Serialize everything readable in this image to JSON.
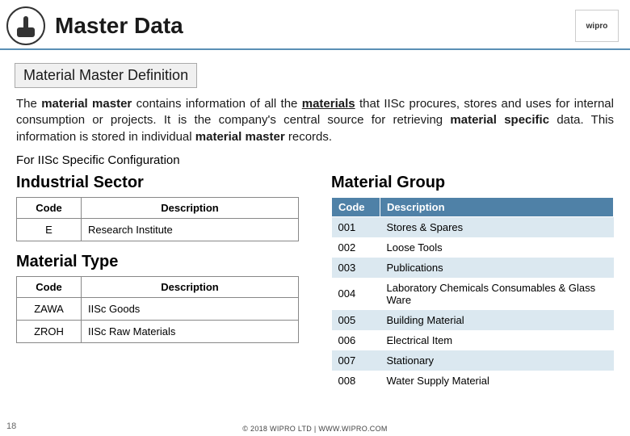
{
  "header": {
    "title": "Master Data",
    "right_logo_text": "wipro"
  },
  "section_heading": "Material Master Definition",
  "intro": {
    "p1a": "The ",
    "p1b": "material master",
    "p1c": " contains information of all the ",
    "p1d": "materials",
    "p1e": " that IISc procures, stores and uses for internal consumption or projects. It is the company's central source for retrieving ",
    "p1f": "material specific",
    "p1g": " data. This information is stored in individual ",
    "p1h": "material master",
    "p1i": " records."
  },
  "subline": "For IISc Specific Configuration",
  "industrial_sector": {
    "title": "Industrial Sector",
    "columns": {
      "code": "Code",
      "desc": "Description"
    },
    "rows": [
      {
        "code": "E",
        "desc": "Research Institute"
      }
    ]
  },
  "material_type": {
    "title": "Material Type",
    "columns": {
      "code": "Code",
      "desc": "Description"
    },
    "rows": [
      {
        "code": "ZAWA",
        "desc": "IISc Goods"
      },
      {
        "code": "ZROH",
        "desc": "IISc Raw Materials"
      }
    ]
  },
  "material_group": {
    "title": "Material Group",
    "columns": {
      "code": "Code",
      "desc": "Description"
    },
    "rows": [
      {
        "code": "001",
        "desc": "Stores & Spares"
      },
      {
        "code": "002",
        "desc": "Loose Tools"
      },
      {
        "code": "003",
        "desc": "Publications"
      },
      {
        "code": "004",
        "desc": "Laboratory Chemicals Consumables & Glass Ware"
      },
      {
        "code": "005",
        "desc": "Building Material"
      },
      {
        "code": "006",
        "desc": "Electrical Item"
      },
      {
        "code": "007",
        "desc": "Stationary"
      },
      {
        "code": "008",
        "desc": "Water Supply Material"
      }
    ]
  },
  "page_number": "18",
  "footer": "© 2018 WIPRO LTD | WWW.WIPRO.COM",
  "colors": {
    "header_rule": "#5a8fb5",
    "mg_header_bg": "#4f81a7",
    "mg_odd_bg": "#dbe8f0"
  }
}
